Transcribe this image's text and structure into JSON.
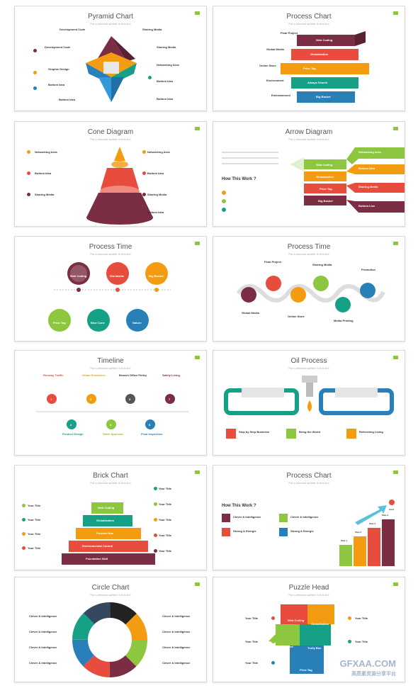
{
  "subtitle": "Put a relevant subtitle in this line",
  "titles": [
    "Pyramid Chart",
    "Process Chart",
    "Cone Diagram",
    "Arrow Diagram",
    "Process Time",
    "Process Time",
    "Timeline",
    "Oil Process",
    "Brick Chart",
    "Process Chart",
    "Circle Chart",
    "Puzzle Head"
  ],
  "pyramid": {
    "left": [
      "Development Code",
      "Development Code",
      "Graphic Design",
      "Bottom Idea",
      "Bottom Idea"
    ],
    "right": [
      "Sharing Media",
      "Sharing Media",
      "Networking Area",
      "Bottom Idea",
      "Bottom Idea"
    ]
  },
  "process1": {
    "left": [
      "Final Project",
      "Global Media",
      "Online Store",
      "Environment",
      "Entertainment"
    ],
    "right": [
      "Web Coding",
      "Globalization",
      "Price Tag",
      "Always Search",
      "Big Basket"
    ]
  },
  "cone": {
    "left": [
      "Networking Area",
      "Bottom Idea",
      "Sharing Media"
    ],
    "right": [
      "Networking Area",
      "Bottom Idea",
      "Sharing Media",
      "Bottom Idea"
    ]
  },
  "arrow": {
    "how": "How This Work ?",
    "left": [
      "Web Coding",
      "Globalization",
      "Price Tag",
      "Big Basket"
    ],
    "right": [
      "Networking Area",
      "Bottom Idea",
      "Sharing Media",
      "Bottom Line"
    ]
  },
  "time1": {
    "top": [
      "Web Coding",
      "Worldwide",
      "Big Basket"
    ],
    "bottom": [
      "Price Tag",
      "Blue Cone",
      "Nature"
    ]
  },
  "time2": {
    "labels": [
      "Final Project",
      "Sharing Media",
      "Promotion",
      "Global Media",
      "Online Store",
      "Media Printing"
    ]
  },
  "timeline": {
    "top": [
      "Runway Traffic",
      "Urban Residence",
      "Branch Office Policy",
      "Safety Living"
    ],
    "topnums": [
      "1",
      "3",
      "5",
      "7"
    ],
    "bottom": [
      "Product Design",
      "Wave Approval",
      "Final Inspection"
    ],
    "botnums": [
      "2",
      "4",
      "6"
    ]
  },
  "oil": {
    "items": [
      "Step by Step Business",
      "Bring the World",
      "Refreshing Living"
    ]
  },
  "brick": {
    "left": [
      "Your Title",
      "Your Title",
      "Your Title",
      "Your Title"
    ],
    "right": [
      "Your Title",
      "Your Title",
      "Your Title",
      "Your Title",
      "Your Title"
    ],
    "layers": [
      "Web Coding",
      "Globalization",
      "Process Box",
      "Environmental Control",
      "Foundation Skill"
    ]
  },
  "process2": {
    "how": "How This Work ?",
    "items": [
      "Clever & Intelligence",
      "Clever & Intelligence",
      "Strong & Energic",
      "Strong & Energic"
    ],
    "steps": [
      "Step 1",
      "Step 2",
      "Step 3",
      "Step 4",
      "Goal"
    ]
  },
  "circle": {
    "left": [
      "Clever & Intelligence",
      "Clever & Intelligence",
      "Clever & Intelligence",
      "Clever & Intelligence"
    ],
    "right": [
      "Clever & Intelligence",
      "Clever & Intelligence",
      "Clever & Intelligence",
      "Clever & Intelligence"
    ]
  },
  "puzzle": {
    "left": [
      "Your Title",
      "Your Title",
      "Your Title"
    ],
    "right": [
      "Your Title",
      "Your Title"
    ],
    "pieces": [
      "Web Coding",
      "Globalization",
      "Big Basket",
      "Trolly Box",
      "Price Tag"
    ]
  },
  "watermark": {
    "main": "GFXAA.COM",
    "sub": "高质素资源分享平台"
  }
}
